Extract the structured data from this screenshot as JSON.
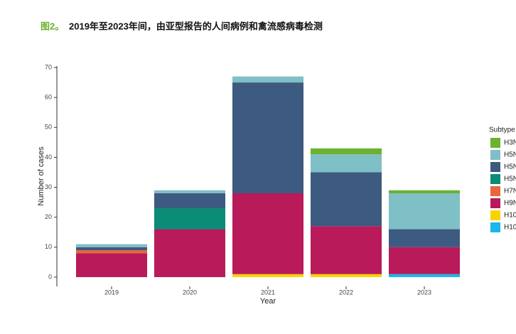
{
  "chart_data": {
    "type": "stacked_bar",
    "figure_label": "图2。",
    "title": "2019年至2023年间，由亚型报告的人间病例和禽流感病毒检测",
    "x_label": "Year",
    "y_label": "Number of cases",
    "legend_title": "Subtype",
    "categories": [
      "2019",
      "2020",
      "2021",
      "2022",
      "2023"
    ],
    "series": [
      {
        "name": "H3N",
        "color": "#6ab22f",
        "values": [
          0,
          0,
          0,
          2,
          1
        ]
      },
      {
        "name": "H5N",
        "color": "#7fbfc6",
        "values": [
          1,
          1,
          2,
          6,
          12
        ]
      },
      {
        "name": "H5N",
        "color": "#3d5a80",
        "values": [
          1,
          5,
          37,
          18,
          6
        ]
      },
      {
        "name": "H5N",
        "color": "#0a8c76",
        "values": [
          0,
          7,
          0,
          0,
          0
        ]
      },
      {
        "name": "H7N",
        "color": "#e8673a",
        "values": [
          1,
          0,
          0,
          0,
          0
        ]
      },
      {
        "name": "H9N",
        "color": "#b81a5a",
        "values": [
          8,
          16,
          27,
          16,
          9
        ]
      },
      {
        "name": "H10",
        "color": "#f9d300",
        "values": [
          0,
          0,
          1,
          1,
          0
        ]
      },
      {
        "name": "H10",
        "color": "#1bb6ec",
        "values": [
          0,
          0,
          0,
          0,
          1
        ]
      }
    ],
    "ylim": [
      -3,
      70.5
    ],
    "yticks": [
      0,
      10,
      20,
      30,
      40,
      50,
      60,
      70
    ]
  }
}
